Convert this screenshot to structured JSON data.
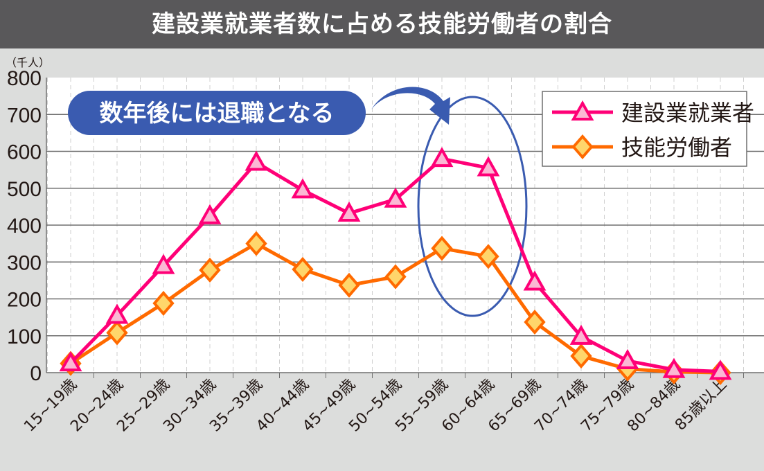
{
  "chart_data": {
    "type": "line",
    "title": "建設業就業者数に占める技能労働者の割合",
    "ylabel": "（千人）",
    "ylim": [
      0,
      800
    ],
    "yticks": [
      0,
      100,
      200,
      300,
      400,
      500,
      600,
      700,
      800
    ],
    "grid": true,
    "legend_position": "top-right",
    "categories": [
      "15~19歳",
      "20~24歳",
      "25~29歳",
      "30~34歳",
      "35~39歳",
      "40~44歳",
      "45~49歳",
      "50~54歳",
      "55~59歳",
      "60~64歳",
      "65~69歳",
      "70~74歳",
      "75~79歳",
      "80~84歳",
      "85歳以上"
    ],
    "series": [
      {
        "name": "建設業就業者",
        "color": "#ff0077",
        "marker": "triangle",
        "marker_fill": "#fbb8d4",
        "values": [
          26,
          155,
          290,
          425,
          570,
          495,
          432,
          470,
          580,
          555,
          245,
          98,
          32,
          8,
          3
        ]
      },
      {
        "name": "技能労働者",
        "color": "#ff6a00",
        "marker": "diamond",
        "marker_fill": "#ffd66b",
        "values": [
          25,
          108,
          188,
          278,
          350,
          280,
          237,
          260,
          337,
          315,
          137,
          45,
          10,
          2,
          0
        ]
      }
    ],
    "annotations": [
      {
        "text": "数年後には退職となる",
        "color": "#3a5bb0",
        "target_categories": [
          "55~59歳",
          "60~64歳"
        ]
      }
    ]
  }
}
